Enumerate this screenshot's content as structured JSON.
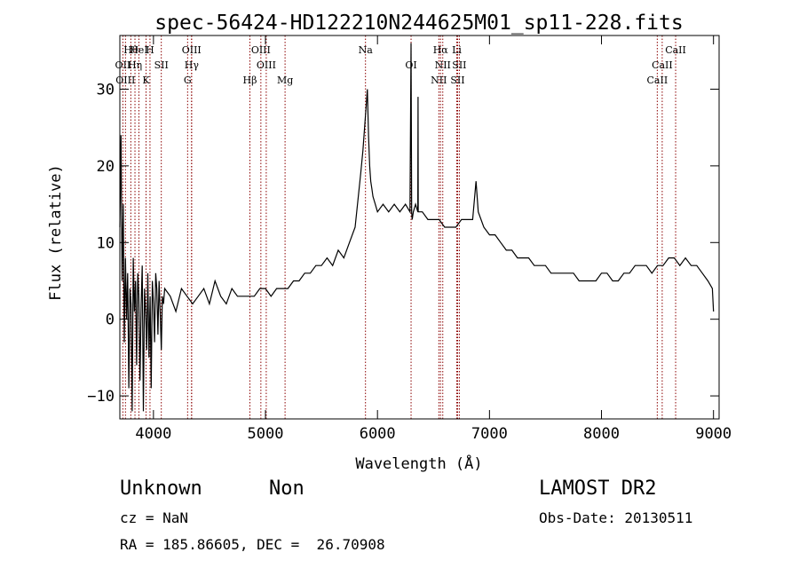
{
  "chart_data": {
    "type": "line",
    "title": "spec-56424-HD122210N244625M01_sp11-228.fits",
    "xlabel": "Wavelength (Å)",
    "ylabel": "Flux (relative)",
    "xlim": [
      3700,
      9050
    ],
    "ylim": [
      -13,
      37
    ],
    "xticks": [
      4000,
      5000,
      6000,
      7000,
      8000,
      9000
    ],
    "yticks": [
      -10,
      0,
      10,
      20,
      30
    ],
    "grid": false,
    "spectrum_line_color": "#000000",
    "marker_line_color": "#8b0000",
    "series": [
      {
        "x": [
          3700,
          3710,
          3720,
          3730,
          3740,
          3750,
          3760,
          3770,
          3780,
          3790,
          3800,
          3810,
          3820,
          3830,
          3840,
          3850,
          3860,
          3870,
          3880,
          3890,
          3900,
          3910,
          3920,
          3930,
          3940,
          3950,
          3960,
          3970,
          3980,
          3990,
          4000,
          4010,
          4020,
          4030,
          4040,
          4050,
          4060,
          4070,
          4080,
          4090,
          4100,
          4150,
          4200,
          4250,
          4300,
          4350,
          4400,
          4450,
          4500,
          4550,
          4600,
          4650,
          4700,
          4750,
          4800,
          4850,
          4900,
          4950,
          5000,
          5050,
          5100,
          5150,
          5200,
          5250,
          5300,
          5350,
          5400,
          5450,
          5500,
          5550,
          5600,
          5650,
          5700,
          5750,
          5800,
          5850,
          5870,
          5890,
          5900,
          5910,
          5920,
          5930,
          5940,
          5950,
          5960,
          5980,
          6000,
          6050,
          6100,
          6150,
          6200,
          6250,
          6290,
          6300,
          6305,
          6310,
          6320,
          6340,
          6360,
          6362,
          6364,
          6380,
          6400,
          6450,
          6500,
          6550,
          6600,
          6650,
          6700,
          6750,
          6800,
          6850,
          6880,
          6900,
          6950,
          7000,
          7050,
          7100,
          7150,
          7200,
          7250,
          7300,
          7350,
          7400,
          7450,
          7500,
          7550,
          7600,
          7650,
          7700,
          7750,
          7800,
          7850,
          7900,
          7950,
          8000,
          8050,
          8100,
          8150,
          8200,
          8250,
          8300,
          8350,
          8400,
          8450,
          8500,
          8550,
          8600,
          8650,
          8700,
          8750,
          8800,
          8850,
          8900,
          8950,
          8990,
          9000
        ],
        "y": [
          12,
          24,
          5,
          15,
          -3,
          8,
          0,
          6,
          -9,
          4,
          2,
          -12,
          8,
          1,
          5,
          -6,
          6,
          3,
          -8,
          2,
          7,
          -12,
          4,
          1,
          -4,
          6,
          -5,
          3,
          -9,
          5,
          2,
          -3,
          6,
          4,
          -2,
          5,
          1,
          -4,
          3,
          2,
          4,
          3,
          1,
          4,
          3,
          2,
          3,
          4,
          2,
          5,
          3,
          2,
          4,
          3,
          3,
          3,
          3,
          4,
          4,
          3,
          4,
          4,
          4,
          5,
          5,
          6,
          6,
          7,
          7,
          8,
          7,
          9,
          8,
          10,
          12,
          19,
          22,
          26,
          28,
          30,
          24,
          20,
          18,
          17,
          16,
          15,
          14,
          15,
          14,
          15,
          14,
          15,
          14,
          36,
          14,
          13,
          14,
          15,
          14,
          29,
          14,
          14,
          14,
          13,
          13,
          13,
          12,
          12,
          12,
          13,
          13,
          13,
          18,
          14,
          12,
          11,
          11,
          10,
          9,
          9,
          8,
          8,
          8,
          7,
          7,
          7,
          6,
          6,
          6,
          6,
          6,
          5,
          5,
          5,
          5,
          6,
          6,
          5,
          5,
          6,
          6,
          7,
          7,
          7,
          6,
          7,
          7,
          8,
          8,
          7,
          8,
          7,
          7,
          6,
          5,
          4,
          1
        ]
      }
    ],
    "line_markers": [
      {
        "label": "Hθ",
        "x": 3798
      },
      {
        "label": "OII",
        "x": 3727
      },
      {
        "label": "OIII",
        "x": 3750
      },
      {
        "label": "HeI",
        "x": 3870
      },
      {
        "label": "Hη",
        "x": 3835
      },
      {
        "label": "K",
        "x": 3934
      },
      {
        "label": "H",
        "x": 3969
      },
      {
        "label": "SII",
        "x": 4070
      },
      {
        "label": "G",
        "x": 4305
      },
      {
        "label": "OIII",
        "x": 4340
      },
      {
        "label": "Hγ",
        "x": 4341
      },
      {
        "label": "Hβ",
        "x": 4861
      },
      {
        "label": "OIII",
        "x": 4959
      },
      {
        "label": "OIII",
        "x": 5007
      },
      {
        "label": "Mg",
        "x": 5175
      },
      {
        "label": "Na",
        "x": 5893
      },
      {
        "label": "OI",
        "x": 6300
      },
      {
        "label": "NII",
        "x": 6548
      },
      {
        "label": "Li",
        "x": 6708
      },
      {
        "label": "NII",
        "x": 6583
      },
      {
        "label": "SII",
        "x": 6716
      },
      {
        "label": "Hα",
        "x": 6563
      },
      {
        "label": "SII",
        "x": 6731
      },
      {
        "label": "CaII",
        "x": 8498
      },
      {
        "label": "CaII",
        "x": 8662
      },
      {
        "label": "CaII",
        "x": 8542
      }
    ]
  },
  "info": {
    "class": "Unknown",
    "subclass": "Non",
    "survey": "LAMOST DR2",
    "cz": "cz = NaN",
    "obs_date": "Obs-Date: 20130511",
    "coords": "RA = 185.86605, DEC =  26.70908"
  }
}
